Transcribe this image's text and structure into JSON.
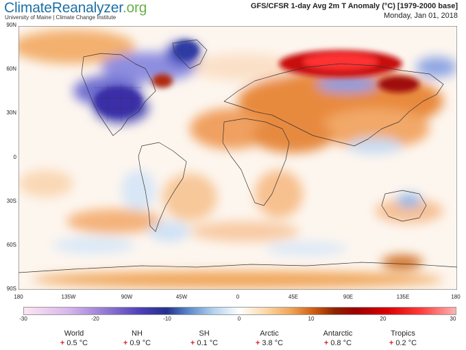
{
  "header": {
    "brand_main": "ClimateReanalyzer",
    "brand_org": ".org",
    "brand_sub": "University of Maine | Climate Change Institute",
    "title": "GFS/CFSR 1-day Avg 2m T Anomaly (°C) [1979-2000 base]",
    "date": "Monday, Jan 01, 2018"
  },
  "map": {
    "lat_labels": [
      "90N",
      "60N",
      "30N",
      "0",
      "30S",
      "60S",
      "90S"
    ],
    "lon_labels": [
      "180",
      "135W",
      "90W",
      "45W",
      "0",
      "45E",
      "90E",
      "135E",
      "180"
    ]
  },
  "colorbar": {
    "ticks": [
      "-30",
      "-20",
      "-10",
      "0",
      "10",
      "20",
      "30"
    ]
  },
  "stats": [
    {
      "label": "World",
      "value": "0.5 °C"
    },
    {
      "label": "NH",
      "value": "0.9 °C"
    },
    {
      "label": "SH",
      "value": "0.1 °C"
    },
    {
      "label": "Arctic",
      "value": "3.8 °C"
    },
    {
      "label": "Antarctic",
      "value": "0.8 °C"
    },
    {
      "label": "Tropics",
      "value": "0.2 °C"
    }
  ],
  "sign": "+"
}
